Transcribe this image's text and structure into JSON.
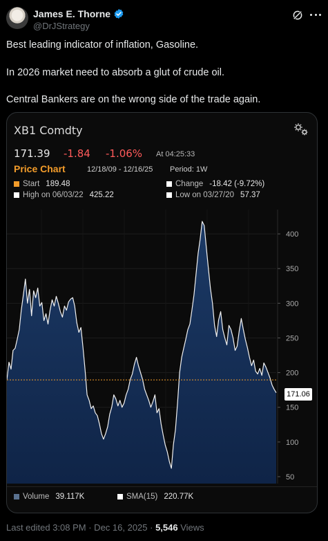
{
  "tweet": {
    "author_name": "James E. Thorne",
    "handle": "@DrJStrategy",
    "line1": "Best leading indicator of inflation, Gasoline.",
    "line2": "In 2026 market need to absorb a glut of crude oil.",
    "line3": "Central Bankers are on the wrong side of the trade again.",
    "edited": "Last edited 3:08 PM · Dec 16, 2025 · ",
    "views_count": "5,546",
    "views_label": " Views",
    "verified_color": "#1d9bf0"
  },
  "card": {
    "ticker": "XB1 Comdty",
    "last_price": "171.39",
    "change": "-1.84",
    "change_pct": "-1.06%",
    "time": "At 04:25:33",
    "chart_label": "Price Chart",
    "date_range": "12/18/09 - 12/16/25",
    "period": "Period: 1W",
    "start_label": "Start",
    "start_value": "189.48",
    "change_label": "Change",
    "change_value": "-18.42 (-9.72%)",
    "high_label": "High on 06/03/22",
    "high_value": "425.22",
    "low_label": "Low on 03/27/20",
    "low_value": "57.37",
    "last_tag": "171.06",
    "volume_label": "Volume",
    "volume_value": "39.117K",
    "sma_label": "SMA(15)",
    "sma_value": "220.77K",
    "accent_orange": "#f39c2a",
    "negative_red": "#ff5a5a"
  },
  "chart_data": {
    "type": "area",
    "title": "XB1 Comdty",
    "xlabel": "",
    "ylabel": "",
    "ylim": [
      40,
      435
    ],
    "yticks": [
      50,
      100,
      150,
      200,
      250,
      300,
      350,
      400
    ],
    "reference_line": 189.48,
    "x_range": [
      "12/18/09",
      "12/16/25"
    ],
    "series": [
      {
        "values": [
          190,
          215,
          205,
          232,
          235,
          248,
          262,
          290,
          312,
          335,
          300,
          320,
          282,
          318,
          308,
          322,
          296,
          301,
          275,
          285,
          270,
          290,
          305,
          296,
          310,
          300,
          288,
          280,
          296,
          290,
          302,
          306,
          308,
          296,
          272,
          258,
          265,
          236,
          205,
          168,
          160,
          148,
          152,
          142,
          138,
          126,
          112,
          104,
          112,
          122,
          140,
          150,
          168,
          162,
          152,
          160,
          150,
          156,
          168,
          176,
          190,
          198,
          212,
          222,
          210,
          200,
          190,
          176,
          168,
          160,
          150,
          158,
          168,
          142,
          148,
          126,
          110,
          96,
          86,
          72,
          62,
          96,
          118,
          156,
          200,
          222,
          235,
          248,
          262,
          270,
          290,
          312,
          342,
          372,
          392,
          418,
          412,
          380,
          350,
          322,
          300,
          268,
          252,
          276,
          288,
          262,
          250,
          240,
          268,
          262,
          250,
          232,
          238,
          260,
          278,
          262,
          248,
          236,
          222,
          210,
          218,
          202,
          198,
          206,
          196,
          214,
          208,
          200,
          192,
          182,
          176,
          171
        ]
      }
    ]
  }
}
